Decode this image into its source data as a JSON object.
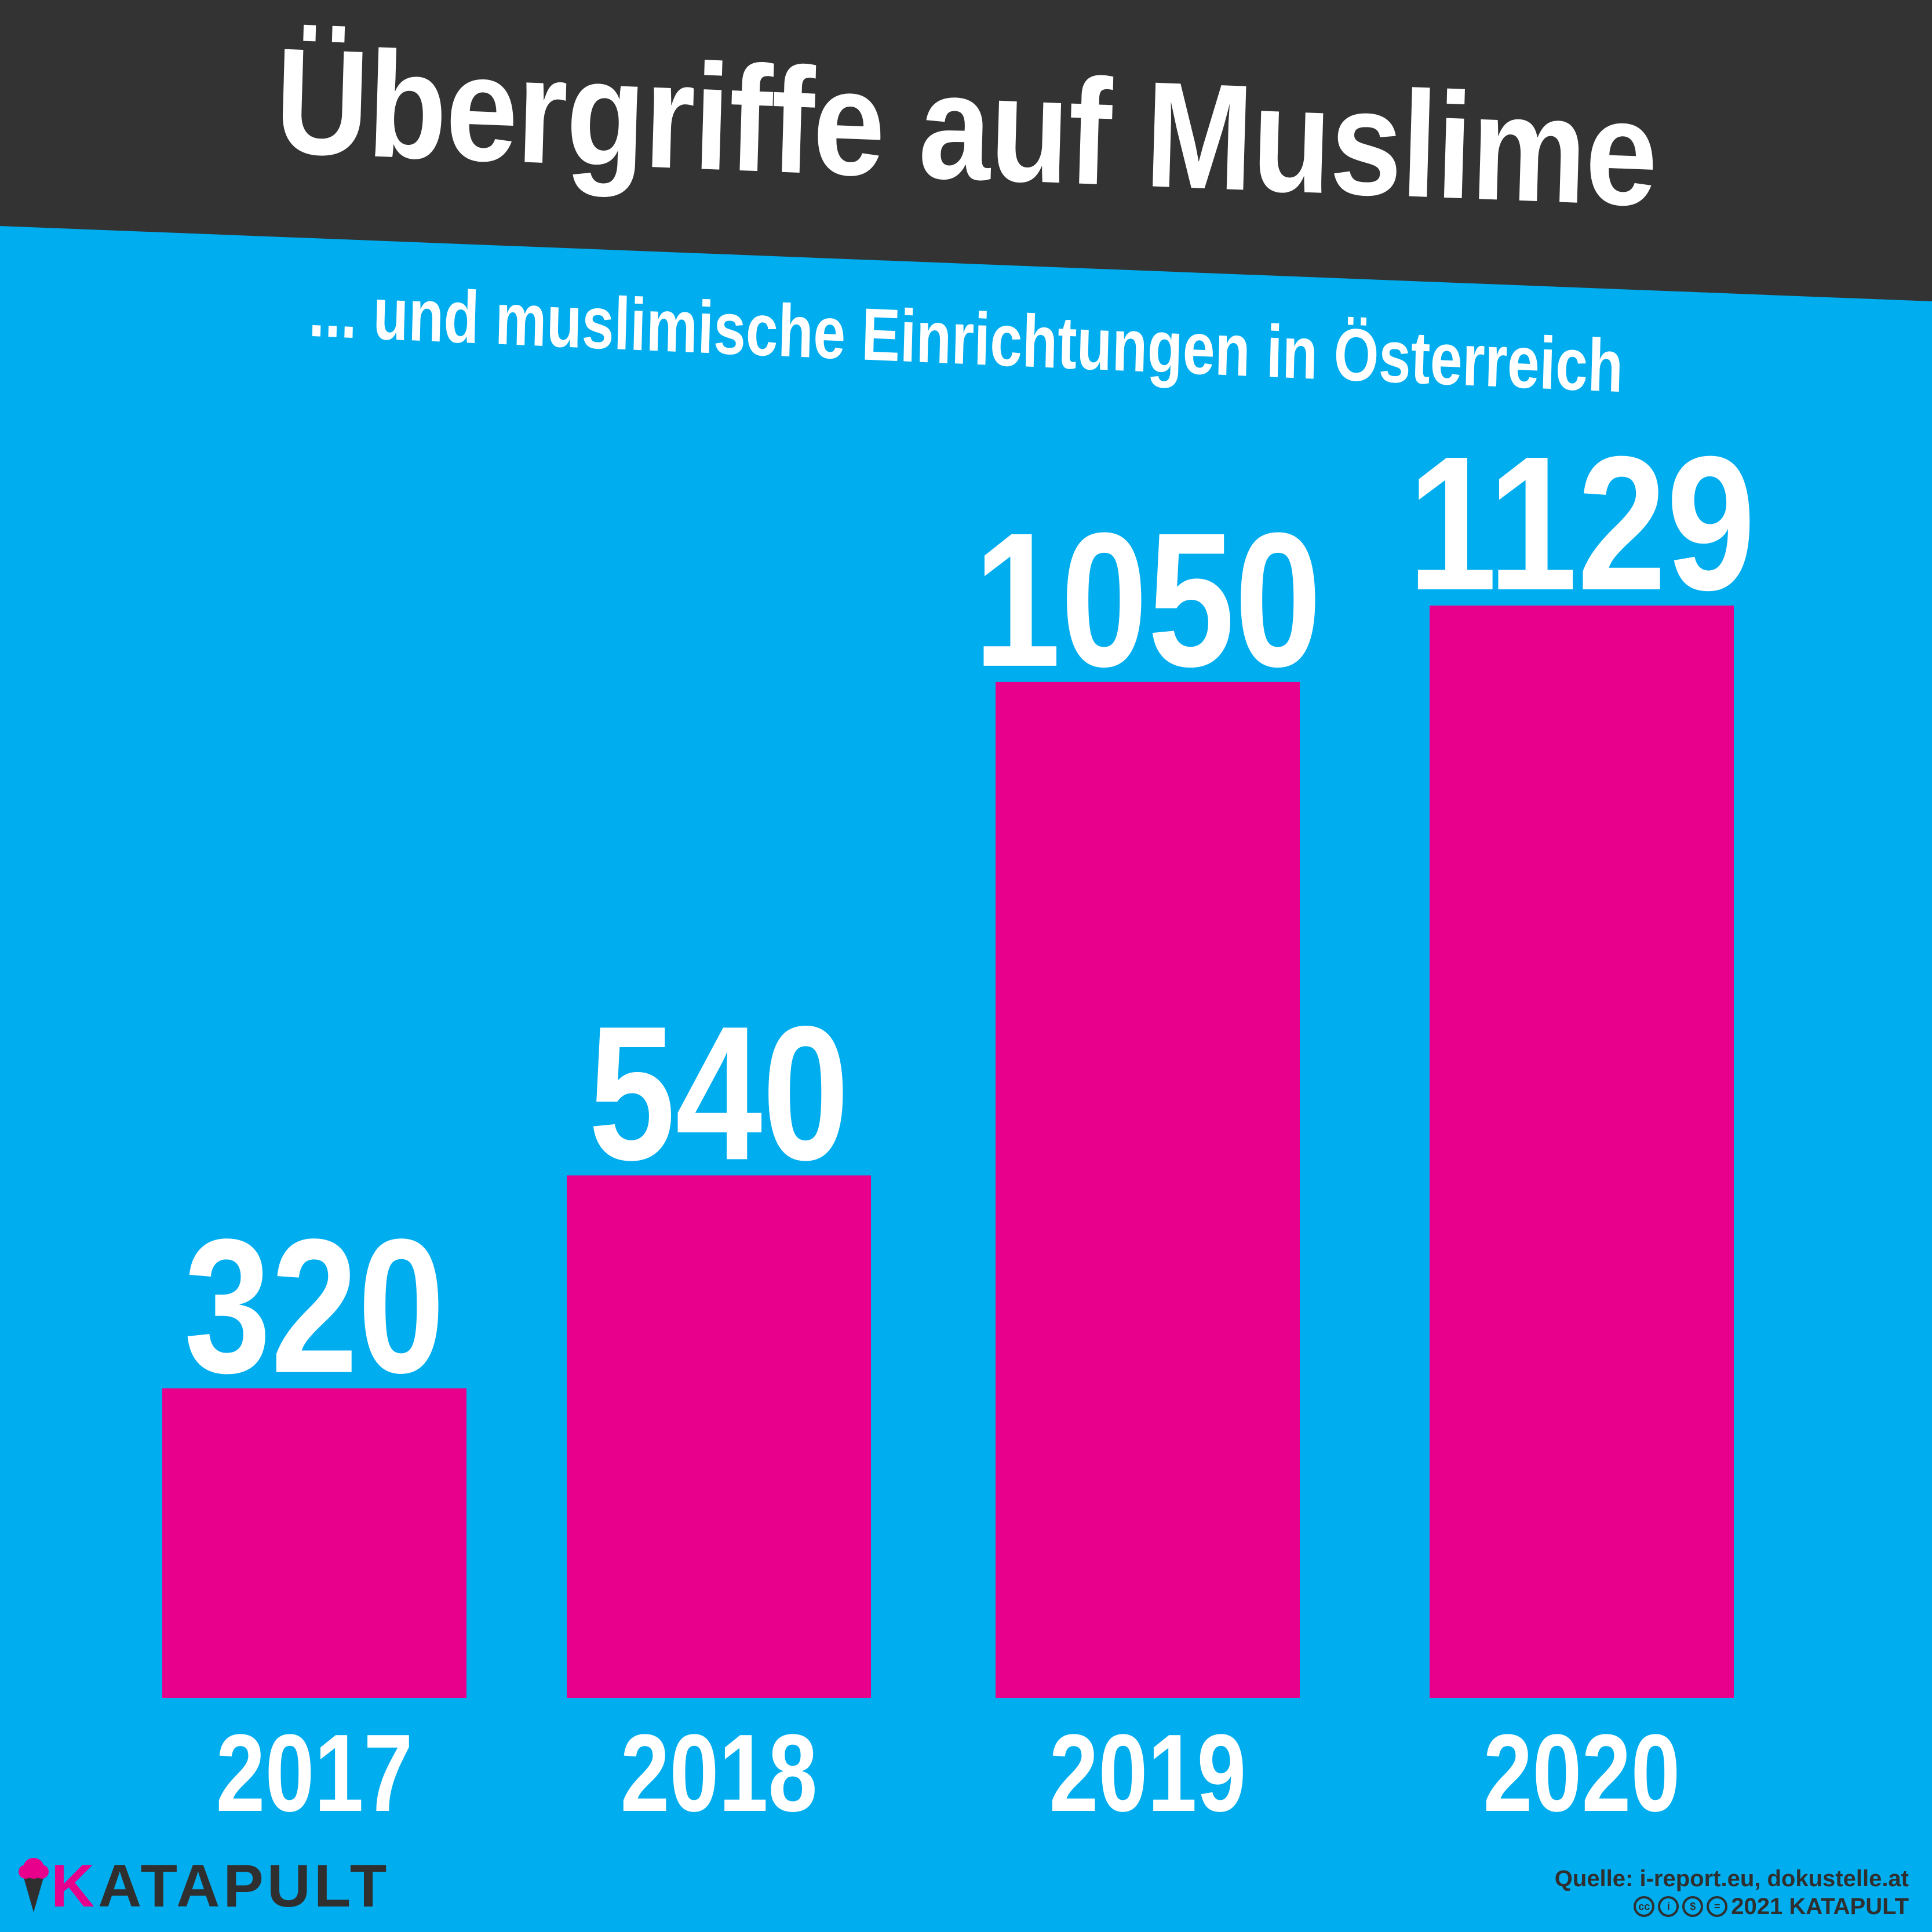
{
  "title": "Übergriffe auf Muslime",
  "subtitle": "... und muslimische Einrichtungen in Österreich",
  "colors": {
    "background": "#00adee",
    "header_band": "#333333",
    "bar": "#e8008c",
    "text": "#ffffff",
    "footer_text": "#2f2f2f"
  },
  "chart_data": {
    "type": "bar",
    "title": "Übergriffe auf Muslime",
    "subtitle": "... und muslimische Einrichtungen in Österreich",
    "categories": [
      "2017",
      "2018",
      "2019",
      "2020"
    ],
    "values": [
      320,
      540,
      1050,
      1129
    ],
    "data_labels": [
      "320",
      "540",
      "1050",
      "1129"
    ],
    "xlabel": "",
    "ylabel": "",
    "ylim": [
      0,
      1129
    ],
    "grid": false,
    "legend": "none"
  },
  "footer": {
    "brand": "KATAPULT",
    "source": "Quelle: i-report.eu, dokustelle.at",
    "copyright": "2021 KATAPULT",
    "license_icons": [
      "cc-icon",
      "by-icon",
      "nc-icon",
      "nd-icon"
    ]
  }
}
